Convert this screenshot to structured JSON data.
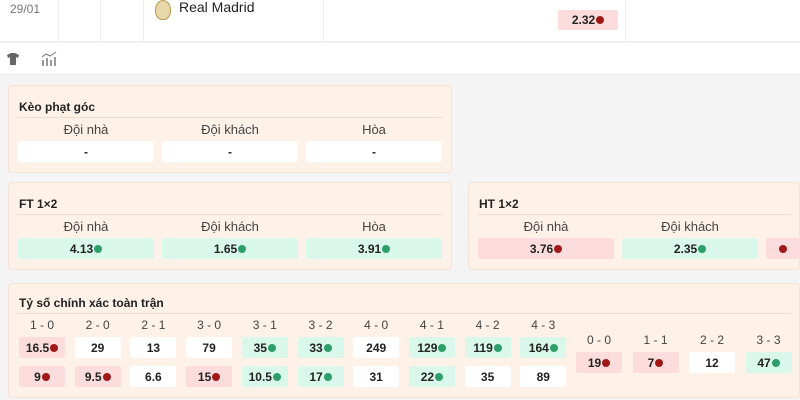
{
  "match": {
    "date": "29/01",
    "team": "Real Madrid",
    "odd": {
      "value": "2.32",
      "trend": "down"
    }
  },
  "icons": [
    "shirt-icon",
    "stats-icon"
  ],
  "corner": {
    "title": "Kèo phạt góc",
    "cols": [
      {
        "label": "Đội nhà",
        "value": "-"
      },
      {
        "label": "Đội khách",
        "value": "-"
      },
      {
        "label": "Hòa",
        "value": "-"
      }
    ]
  },
  "ft": {
    "title": "FT 1×2",
    "cols": [
      {
        "label": "Đội nhà",
        "value": "4.13",
        "trend": "up"
      },
      {
        "label": "Đội khách",
        "value": "1.65",
        "trend": "up"
      },
      {
        "label": "Hòa",
        "value": "3.91",
        "trend": "up"
      }
    ]
  },
  "ht": {
    "title": "HT 1×2",
    "cols": [
      {
        "label": "Đội nhà",
        "value": "3.76",
        "trend": "down"
      },
      {
        "label": "Đội khách",
        "value": "2.35",
        "trend": "up"
      },
      {
        "label": "",
        "value": "",
        "trend": "down"
      }
    ]
  },
  "correct": {
    "title": "Tỷ số chính xác toàn trận",
    "home": [
      {
        "s": "1 - 0",
        "v": "16.5",
        "t": "down"
      },
      {
        "s": "2 - 0",
        "v": "29"
      },
      {
        "s": "2 - 1",
        "v": "13"
      },
      {
        "s": "3 - 0",
        "v": "79"
      },
      {
        "s": "3 - 1",
        "v": "35",
        "t": "up"
      },
      {
        "s": "3 - 2",
        "v": "33",
        "t": "up"
      },
      {
        "s": "4 - 0",
        "v": "249"
      },
      {
        "s": "4 - 1",
        "v": "129",
        "t": "up"
      },
      {
        "s": "4 - 2",
        "v": "119",
        "t": "up"
      },
      {
        "s": "4 - 3",
        "v": "164",
        "t": "up"
      }
    ],
    "away": [
      {
        "v": "9",
        "t": "down"
      },
      {
        "v": "9.5",
        "t": "down"
      },
      {
        "v": "6.6"
      },
      {
        "v": "15",
        "t": "down"
      },
      {
        "v": "10.5",
        "t": "up"
      },
      {
        "v": "17",
        "t": "up"
      },
      {
        "v": "31"
      },
      {
        "v": "22",
        "t": "up"
      },
      {
        "v": "35"
      },
      {
        "v": "89"
      }
    ],
    "draw": [
      {
        "s": "0 - 0",
        "v": "19",
        "t": "down"
      },
      {
        "s": "1 - 1",
        "v": "7",
        "t": "down"
      },
      {
        "s": "2 - 2",
        "v": "12"
      },
      {
        "s": "3 - 3",
        "v": "47",
        "t": "up"
      }
    ]
  },
  "colors": {
    "up": "#2e9e6a",
    "down": "#a01818",
    "card": "#fdf1e8"
  }
}
